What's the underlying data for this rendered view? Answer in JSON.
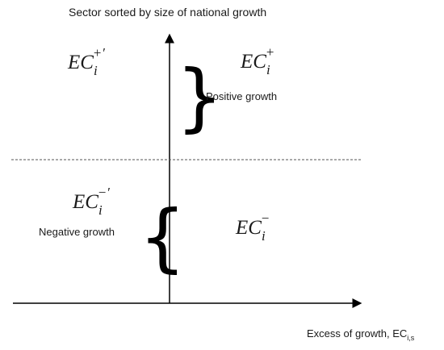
{
  "y_axis": {
    "label": "Sector sorted by size of national growth"
  },
  "x_axis": {
    "label_main": "Excess of growth, EC",
    "label_sub": "i,s"
  },
  "quadrants": {
    "top_left": {
      "base": "EC",
      "sub": "i",
      "sup": "+′"
    },
    "top_right": {
      "base": "EC",
      "sub": "i",
      "sup": "+"
    },
    "bottom_left": {
      "base": "EC",
      "sub": "i",
      "sup": "−′"
    },
    "bottom_right": {
      "base": "EC",
      "sub": "i",
      "sup": "−"
    }
  },
  "annotations": {
    "positive": "Positive growth",
    "negative": "Negative growth"
  },
  "braces": {
    "right": "}",
    "left": "{"
  },
  "colors": {
    "axis": "#000000",
    "text": "#1a1a1a",
    "divider": "#555555"
  }
}
